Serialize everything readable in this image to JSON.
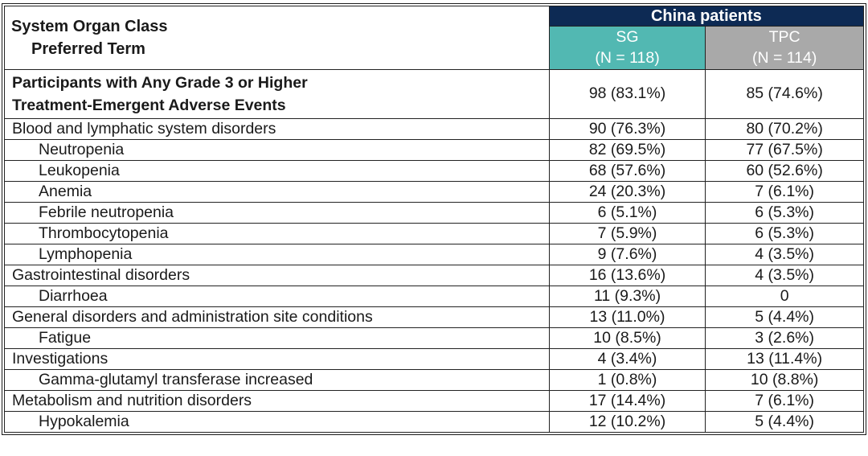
{
  "header": {
    "col1_line1": "System Organ Class",
    "col1_line2": "Preferred Term",
    "group_header": "China patients",
    "columns": [
      {
        "label": "SG",
        "n": "(N = 118)"
      },
      {
        "label": "TPC",
        "n": "(N = 114)"
      }
    ]
  },
  "summary_row": {
    "label_line1": "Participants with Any Grade 3 or Higher",
    "label_line2": "Treatment-Emergent Adverse Events",
    "sg": "98 (83.1%)",
    "tpc": "85 (74.6%)"
  },
  "rows": [
    {
      "label": "Blood and lymphatic system disorders",
      "indent": false,
      "sg": "90 (76.3%)",
      "tpc": "80 (70.2%)"
    },
    {
      "label": "Neutropenia",
      "indent": true,
      "sg": "82 (69.5%)",
      "tpc": "77 (67.5%)"
    },
    {
      "label": "Leukopenia",
      "indent": true,
      "sg": "68 (57.6%)",
      "tpc": "60 (52.6%)"
    },
    {
      "label": "Anemia",
      "indent": true,
      "sg": "24 (20.3%)",
      "tpc": "7 (6.1%)"
    },
    {
      "label": "Febrile neutropenia",
      "indent": true,
      "sg": "6 (5.1%)",
      "tpc": "6 (5.3%)"
    },
    {
      "label": "Thrombocytopenia",
      "indent": true,
      "sg": "7 (5.9%)",
      "tpc": "6 (5.3%)"
    },
    {
      "label": "Lymphopenia",
      "indent": true,
      "sg": "9 (7.6%)",
      "tpc": "4 (3.5%)"
    },
    {
      "label": "Gastrointestinal disorders",
      "indent": false,
      "sg": "16 (13.6%)",
      "tpc": "4 (3.5%)"
    },
    {
      "label": "Diarrhoea",
      "indent": true,
      "sg": "11 (9.3%)",
      "tpc": "0"
    },
    {
      "label": "General disorders and administration site conditions",
      "indent": false,
      "sg": "13 (11.0%)",
      "tpc": "5 (4.4%)"
    },
    {
      "label": "Fatigue",
      "indent": true,
      "sg": "10 (8.5%)",
      "tpc": "3 (2.6%)"
    },
    {
      "label": "Investigations",
      "indent": false,
      "sg": "4 (3.4%)",
      "tpc": "13 (11.4%)"
    },
    {
      "label": "Gamma-glutamyl transferase increased",
      "indent": true,
      "sg": "1 (0.8%)",
      "tpc": "10 (8.8%)"
    },
    {
      "label": "Metabolism and nutrition disorders",
      "indent": false,
      "sg": "17 (14.4%)",
      "tpc": "7 (6.1%)"
    },
    {
      "label": "Hypokalemia",
      "indent": true,
      "sg": "12 (10.2%)",
      "tpc": "5 (4.4%)"
    }
  ],
  "colors": {
    "navy": "#0d2a54",
    "teal": "#52b8b2",
    "gray": "#a9a9a9",
    "border": "#222222",
    "text": "#1a1a1a"
  }
}
